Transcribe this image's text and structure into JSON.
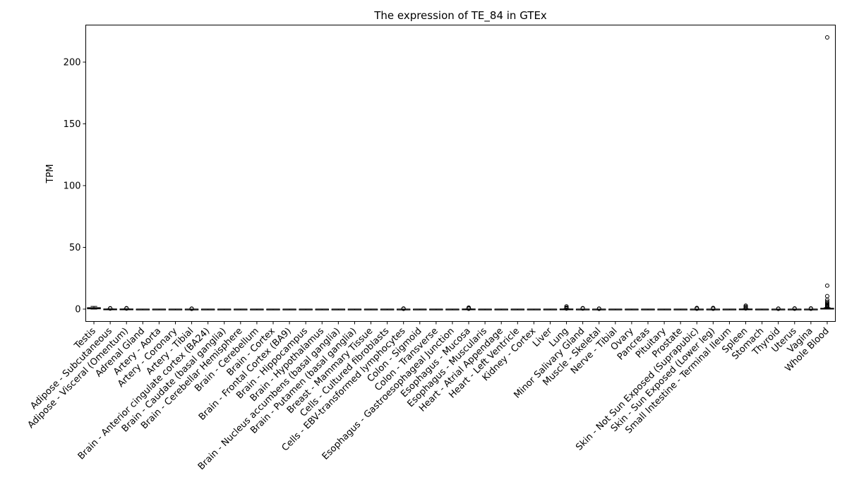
{
  "chart_data": {
    "type": "box",
    "title": "The expression of TE_84 in GTEx",
    "xlabel": "",
    "ylabel": "TPM",
    "ylim": [
      -10,
      230
    ],
    "yticks": [
      0,
      50,
      100,
      150,
      200
    ],
    "grid": false,
    "legend": "none",
    "box_color": "#000000",
    "categories": [
      "Testis",
      "Adipose - Subcutaneous",
      "Adipose - Visceral (Omentum)",
      "Adrenal Gland",
      "Artery - Aorta",
      "Artery - Coronary",
      "Artery - Tibial",
      "Brain - Anterior cingulate cortex (BA24)",
      "Brain - Caudate (basal ganglia)",
      "Brain - Cerebellar Hemisphere",
      "Brain - Cerebellum",
      "Brain - Cortex",
      "Brain - Frontal Cortex (BA9)",
      "Brain - Hippocampus",
      "Brain - Hypothalamus",
      "Brain - Nucleus accumbens (basal ganglia)",
      "Brain - Putamen (basal ganglia)",
      "Breast - Mammary Tissue",
      "Cells - Cultured fibroblasts",
      "Cells - EBV-transformed lymphocytes",
      "Colon - Sigmoid",
      "Colon - Transverse",
      "Esophagus - Gastroesophageal Junction",
      "Esophagus - Mucosa",
      "Esophagus - Muscularis",
      "Heart - Atrial Appendage",
      "Heart - Left Ventricle",
      "Kidney - Cortex",
      "Liver",
      "Lung",
      "Minor Salivary Gland",
      "Muscle - Skeletal",
      "Nerve - Tibial",
      "Ovary",
      "Pancreas",
      "Pituitary",
      "Prostate",
      "Skin - Not Sun Exposed (Suprapubic)",
      "Skin - Sun Exposed (Lower leg)",
      "Small Intestine - Terminal Ileum",
      "Spleen",
      "Stomach",
      "Thyroid",
      "Uterus",
      "Vagina",
      "Whole Blood"
    ],
    "boxes": [
      {
        "q1": 0.2,
        "median": 0.6,
        "q3": 1.2,
        "whisker_low": 0,
        "whisker_high": 2.2,
        "outliers": []
      },
      {
        "q1": 0,
        "median": 0,
        "q3": 0.1,
        "whisker_low": 0,
        "whisker_high": 0.2,
        "outliers": [
          0.4,
          0.7
        ]
      },
      {
        "q1": 0,
        "median": 0,
        "q3": 0.1,
        "whisker_low": 0,
        "whisker_high": 0.2,
        "outliers": [
          0.4,
          0.8
        ]
      },
      {
        "q1": 0,
        "median": 0,
        "q3": 0,
        "whisker_low": 0,
        "whisker_high": 0,
        "outliers": []
      },
      {
        "q1": 0,
        "median": 0,
        "q3": 0,
        "whisker_low": 0,
        "whisker_high": 0,
        "outliers": []
      },
      {
        "q1": 0,
        "median": 0,
        "q3": 0,
        "whisker_low": 0,
        "whisker_high": 0,
        "outliers": []
      },
      {
        "q1": 0,
        "median": 0,
        "q3": 0,
        "whisker_low": 0,
        "whisker_high": 0,
        "outliers": [
          0.2,
          0.4
        ]
      },
      {
        "q1": 0,
        "median": 0,
        "q3": 0,
        "whisker_low": 0,
        "whisker_high": 0,
        "outliers": []
      },
      {
        "q1": 0,
        "median": 0,
        "q3": 0,
        "whisker_low": 0,
        "whisker_high": 0,
        "outliers": []
      },
      {
        "q1": 0,
        "median": 0,
        "q3": 0,
        "whisker_low": 0,
        "whisker_high": 0,
        "outliers": []
      },
      {
        "q1": 0,
        "median": 0,
        "q3": 0,
        "whisker_low": 0,
        "whisker_high": 0,
        "outliers": []
      },
      {
        "q1": 0,
        "median": 0,
        "q3": 0,
        "whisker_low": 0,
        "whisker_high": 0,
        "outliers": []
      },
      {
        "q1": 0,
        "median": 0,
        "q3": 0,
        "whisker_low": 0,
        "whisker_high": 0,
        "outliers": []
      },
      {
        "q1": 0,
        "median": 0,
        "q3": 0,
        "whisker_low": 0,
        "whisker_high": 0,
        "outliers": []
      },
      {
        "q1": 0,
        "median": 0,
        "q3": 0,
        "whisker_low": 0,
        "whisker_high": 0,
        "outliers": []
      },
      {
        "q1": 0,
        "median": 0,
        "q3": 0,
        "whisker_low": 0,
        "whisker_high": 0,
        "outliers": []
      },
      {
        "q1": 0,
        "median": 0,
        "q3": 0,
        "whisker_low": 0,
        "whisker_high": 0,
        "outliers": []
      },
      {
        "q1": 0,
        "median": 0,
        "q3": 0,
        "whisker_low": 0,
        "whisker_high": 0,
        "outliers": []
      },
      {
        "q1": 0,
        "median": 0,
        "q3": 0,
        "whisker_low": 0,
        "whisker_high": 0,
        "outliers": []
      },
      {
        "q1": 0,
        "median": 0,
        "q3": 0,
        "whisker_low": 0,
        "whisker_high": 0,
        "outliers": [
          0.2,
          0.5
        ]
      },
      {
        "q1": 0,
        "median": 0,
        "q3": 0,
        "whisker_low": 0,
        "whisker_high": 0,
        "outliers": []
      },
      {
        "q1": 0,
        "median": 0,
        "q3": 0,
        "whisker_low": 0,
        "whisker_high": 0,
        "outliers": []
      },
      {
        "q1": 0,
        "median": 0,
        "q3": 0,
        "whisker_low": 0,
        "whisker_high": 0,
        "outliers": []
      },
      {
        "q1": 0,
        "median": 0,
        "q3": 0.1,
        "whisker_low": 0,
        "whisker_high": 0.2,
        "outliers": [
          0.3,
          0.5,
          0.8,
          1.0,
          1.2
        ]
      },
      {
        "q1": 0,
        "median": 0,
        "q3": 0,
        "whisker_low": 0,
        "whisker_high": 0,
        "outliers": []
      },
      {
        "q1": 0,
        "median": 0,
        "q3": 0,
        "whisker_low": 0,
        "whisker_high": 0,
        "outliers": []
      },
      {
        "q1": 0,
        "median": 0,
        "q3": 0,
        "whisker_low": 0,
        "whisker_high": 0,
        "outliers": []
      },
      {
        "q1": 0,
        "median": 0,
        "q3": 0,
        "whisker_low": 0,
        "whisker_high": 0,
        "outliers": []
      },
      {
        "q1": 0,
        "median": 0,
        "q3": 0,
        "whisker_low": 0,
        "whisker_high": 0,
        "outliers": []
      },
      {
        "q1": 0,
        "median": 0,
        "q3": 0.1,
        "whisker_low": 0,
        "whisker_high": 0.2,
        "outliers": [
          0.4,
          0.8,
          1.3,
          2.2
        ]
      },
      {
        "q1": 0,
        "median": 0,
        "q3": 0,
        "whisker_low": 0,
        "whisker_high": 0,
        "outliers": [
          0.4,
          0.8
        ]
      },
      {
        "q1": 0,
        "median": 0,
        "q3": 0,
        "whisker_low": 0,
        "whisker_high": 0,
        "outliers": [
          0.2,
          0.4
        ]
      },
      {
        "q1": 0,
        "median": 0,
        "q3": 0,
        "whisker_low": 0,
        "whisker_high": 0,
        "outliers": []
      },
      {
        "q1": 0,
        "median": 0,
        "q3": 0,
        "whisker_low": 0,
        "whisker_high": 0,
        "outliers": []
      },
      {
        "q1": 0,
        "median": 0,
        "q3": 0,
        "whisker_low": 0,
        "whisker_high": 0,
        "outliers": []
      },
      {
        "q1": 0,
        "median": 0,
        "q3": 0,
        "whisker_low": 0,
        "whisker_high": 0,
        "outliers": []
      },
      {
        "q1": 0,
        "median": 0,
        "q3": 0,
        "whisker_low": 0,
        "whisker_high": 0,
        "outliers": []
      },
      {
        "q1": 0,
        "median": 0,
        "q3": 0,
        "whisker_low": 0,
        "whisker_high": 0,
        "outliers": [
          0.3,
          0.6,
          0.9
        ]
      },
      {
        "q1": 0,
        "median": 0,
        "q3": 0,
        "whisker_low": 0,
        "whisker_high": 0,
        "outliers": [
          0.3,
          0.6,
          0.9
        ]
      },
      {
        "q1": 0,
        "median": 0,
        "q3": 0,
        "whisker_low": 0,
        "whisker_high": 0,
        "outliers": []
      },
      {
        "q1": 0,
        "median": 0,
        "q3": 0.1,
        "whisker_low": 0,
        "whisker_high": 0.2,
        "outliers": [
          0.5,
          1.2,
          2.0,
          2.8
        ]
      },
      {
        "q1": 0,
        "median": 0,
        "q3": 0,
        "whisker_low": 0,
        "whisker_high": 0,
        "outliers": []
      },
      {
        "q1": 0,
        "median": 0,
        "q3": 0,
        "whisker_low": 0,
        "whisker_high": 0,
        "outliers": [
          0.2,
          0.4
        ]
      },
      {
        "q1": 0,
        "median": 0,
        "q3": 0,
        "whisker_low": 0,
        "whisker_high": 0,
        "outliers": [
          0.3,
          0.6
        ]
      },
      {
        "q1": 0,
        "median": 0,
        "q3": 0,
        "whisker_low": 0,
        "whisker_high": 0,
        "outliers": [
          0.3,
          0.6
        ]
      },
      {
        "q1": 0.1,
        "median": 0.3,
        "q3": 0.7,
        "whisker_low": 0,
        "whisker_high": 1.2,
        "outliers": [
          1.5,
          2.0,
          2.5,
          3.0,
          3.5,
          4.2,
          5.0,
          6.0,
          7.5,
          10.5,
          19.0,
          220.0
        ]
      }
    ]
  }
}
